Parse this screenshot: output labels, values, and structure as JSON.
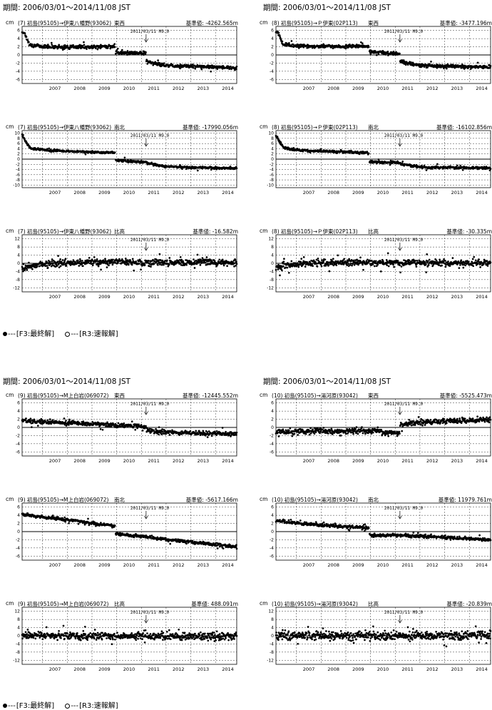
{
  "page": {
    "groups": [
      {
        "period_left": "期間: 2006/03/01～2014/11/08 JST",
        "period_right": "期間: 2006/03/01～2014/11/08 JST"
      },
      {
        "period_left": "期間: 2006/03/01～2014/11/08 JST",
        "period_right": "期間: 2006/03/01～2014/11/08 JST"
      }
    ],
    "legend": {
      "final_label": "[F3:最終解]",
      "quick_label": "[R3:速報解]",
      "dash": "---"
    },
    "colors": {
      "data": "#000000",
      "grid": "#000000"
    }
  },
  "chart_data": [
    {
      "type": "scatter",
      "unit": "cm",
      "line_label": "(7) 初島(95105)→伊東八幡野(93062)",
      "component": "東西",
      "reference": "基準値: -4262.565m",
      "annotation": "2011/03/11 M9.0",
      "annotation_x": 2011.19,
      "ylim": [
        -7,
        7
      ],
      "yticks": [
        6,
        4,
        2,
        0,
        -2,
        -4,
        -6
      ],
      "xlim": [
        2006.17,
        2014.86
      ],
      "xticks": [
        2007,
        2008,
        2009,
        2010,
        2011,
        2012,
        2013,
        2014
      ],
      "grid": true,
      "segments": [
        {
          "x": [
            2006.17,
            2006.28,
            2006.45,
            2006.7,
            2007.0,
            2007.5,
            2008.0,
            2008.5,
            2009.0,
            2009.5,
            2009.93
          ],
          "y": [
            5.7,
            5.3,
            2.6,
            2.3,
            2.1,
            2.0,
            1.9,
            2.0,
            1.9,
            2.1,
            2.0
          ]
        },
        {
          "x": [
            2009.96,
            2010.3,
            2010.7,
            2011.0,
            2011.18
          ],
          "y": [
            0.7,
            0.6,
            0.5,
            0.5,
            0.5
          ]
        },
        {
          "x": [
            2011.2,
            2011.6,
            2012.0,
            2012.5,
            2013.0,
            2013.5,
            2014.0,
            2014.5,
            2014.86
          ],
          "y": [
            -1.5,
            -2.2,
            -2.5,
            -2.7,
            -2.8,
            -2.9,
            -3.0,
            -3.1,
            -3.2
          ]
        }
      ],
      "scatter": 0.35
    },
    {
      "type": "scatter",
      "unit": "cm",
      "line_label": "(8) 初島(95105)→Ｐ伊東(02P113)",
      "component": "東西",
      "reference": "基準値: -3477.196m",
      "annotation": "2011/03/11 M9.0",
      "annotation_x": 2011.19,
      "ylim": [
        -7,
        7
      ],
      "yticks": [
        6,
        4,
        2,
        0,
        -2,
        -4,
        -6
      ],
      "xlim": [
        2006.17,
        2014.86
      ],
      "xticks": [
        2007,
        2008,
        2009,
        2010,
        2011,
        2012,
        2013,
        2014
      ],
      "grid": true,
      "segments": [
        {
          "x": [
            2006.17,
            2006.28,
            2006.45,
            2006.7,
            2007.0,
            2007.5,
            2008.0,
            2008.5,
            2009.0,
            2009.5,
            2009.93
          ],
          "y": [
            5.7,
            5.2,
            2.7,
            2.4,
            2.2,
            2.1,
            2.1,
            2.1,
            2.0,
            2.2,
            2.1
          ]
        },
        {
          "x": [
            2009.96,
            2010.4,
            2010.8,
            2011.18
          ],
          "y": [
            0.7,
            0.5,
            0.4,
            0.3
          ]
        },
        {
          "x": [
            2011.2,
            2011.6,
            2012.0,
            2012.5,
            2013.0,
            2013.5,
            2014.0,
            2014.5,
            2014.86
          ],
          "y": [
            -1.5,
            -2.2,
            -2.5,
            -2.6,
            -2.8,
            -2.8,
            -2.9,
            -3.0,
            -3.0
          ]
        }
      ],
      "scatter": 0.35
    },
    {
      "type": "scatter",
      "unit": "cm",
      "line_label": "(7) 初島(95105)→伊東八幡野(93062)",
      "component": "南北",
      "reference": "基準値: -17990.056m",
      "annotation": "2011/03/11 M9.0",
      "annotation_x": 2011.19,
      "ylim": [
        -11,
        11
      ],
      "yticks": [
        10,
        8,
        6,
        4,
        2,
        0,
        -2,
        -4,
        -6,
        -8,
        -10
      ],
      "xlim": [
        2006.17,
        2014.86
      ],
      "xticks": [
        2007,
        2008,
        2009,
        2010,
        2011,
        2012,
        2013,
        2014
      ],
      "grid": true,
      "segments": [
        {
          "x": [
            2006.17,
            2006.3,
            2006.5,
            2006.8,
            2007.2,
            2007.8,
            2008.5,
            2009.2,
            2009.93
          ],
          "y": [
            9.3,
            7.0,
            4.3,
            3.8,
            3.4,
            3.1,
            2.9,
            2.7,
            2.5
          ]
        },
        {
          "x": [
            2009.96,
            2010.5,
            2011.18
          ],
          "y": [
            -0.5,
            -0.8,
            -1.1
          ]
        },
        {
          "x": [
            2011.2,
            2011.6,
            2012.0,
            2012.5,
            2013.0,
            2013.5,
            2014.0,
            2014.5,
            2014.86
          ],
          "y": [
            -1.4,
            -2.3,
            -2.8,
            -3.0,
            -3.2,
            -3.3,
            -3.4,
            -3.5,
            -3.5
          ]
        }
      ],
      "scatter": 0.35
    },
    {
      "type": "scatter",
      "unit": "cm",
      "line_label": "(8) 初島(95105)→Ｐ伊東(02P113)",
      "component": "南北",
      "reference": "基準値: -16102.856m",
      "annotation": "2011/03/11 M9.0",
      "annotation_x": 2011.19,
      "ylim": [
        -11,
        11
      ],
      "yticks": [
        10,
        8,
        6,
        4,
        2,
        0,
        -2,
        -4,
        -6,
        -8,
        -10
      ],
      "xlim": [
        2006.17,
        2014.86
      ],
      "xticks": [
        2007,
        2008,
        2009,
        2010,
        2011,
        2012,
        2013,
        2014
      ],
      "grid": true,
      "segments": [
        {
          "x": [
            2006.17,
            2006.3,
            2006.5,
            2006.8,
            2007.2,
            2007.8,
            2008.5,
            2009.2,
            2009.93
          ],
          "y": [
            9.2,
            6.8,
            4.4,
            3.8,
            3.4,
            3.1,
            2.9,
            2.7,
            2.4
          ]
        },
        {
          "x": [
            2009.96,
            2010.5,
            2011.18
          ],
          "y": [
            -1.0,
            -1.2,
            -1.4
          ]
        },
        {
          "x": [
            2011.2,
            2011.6,
            2012.0,
            2012.5,
            2013.0,
            2013.5,
            2014.0,
            2014.5,
            2014.86
          ],
          "y": [
            -1.8,
            -2.4,
            -3.0,
            -3.2,
            -3.2,
            -3.3,
            -3.4,
            -3.4,
            -3.4
          ]
        }
      ],
      "scatter": 0.4
    },
    {
      "type": "scatter",
      "unit": "cm",
      "line_label": "(7) 初島(95105)→伊東八幡野(93062)",
      "component": "比高",
      "reference": "基準値: -16.582m",
      "annotation": "2011/03/11 M9.0",
      "annotation_x": 2011.19,
      "ylim": [
        -14,
        14
      ],
      "yticks": [
        12,
        8,
        4,
        0,
        -4,
        -8,
        -12
      ],
      "xlim": [
        2006.17,
        2014.86
      ],
      "xticks": [
        2007,
        2008,
        2009,
        2010,
        2011,
        2012,
        2013,
        2014
      ],
      "grid": true,
      "segments": [
        {
          "x": [
            2006.17,
            2006.5,
            2007.0,
            2008.0,
            2009.0,
            2010.0,
            2011.0,
            2012.0,
            2013.0,
            2014.0,
            2014.86
          ],
          "y": [
            -2.5,
            -1.5,
            -0.5,
            0.3,
            0.5,
            0.5,
            0.5,
            0.5,
            0.5,
            0.5,
            0.5
          ]
        }
      ],
      "scatter": 1.4
    },
    {
      "type": "scatter",
      "unit": "cm",
      "line_label": "(8) 初島(95105)→Ｐ伊東(02P113)",
      "component": "比高",
      "reference": "基準値: -30.335m",
      "annotation": "2011/03/11 M9.0",
      "annotation_x": 2011.19,
      "ylim": [
        -14,
        14
      ],
      "yticks": [
        12,
        8,
        4,
        0,
        -4,
        -8,
        -12
      ],
      "xlim": [
        2006.17,
        2014.86
      ],
      "xticks": [
        2007,
        2008,
        2009,
        2010,
        2011,
        2012,
        2013,
        2014
      ],
      "grid": true,
      "segments": [
        {
          "x": [
            2006.17,
            2006.5,
            2007.0,
            2008.0,
            2009.0,
            2010.0,
            2011.0,
            2012.0,
            2013.0,
            2014.0,
            2014.86
          ],
          "y": [
            -2.2,
            -1.2,
            -0.3,
            0.3,
            0.4,
            0.4,
            0.4,
            0.3,
            0.2,
            0.2,
            0.2
          ]
        }
      ],
      "scatter": 1.4
    },
    {
      "type": "scatter",
      "unit": "cm",
      "line_label": "(9) 初島(95105)→M上白岩(069072)",
      "component": "東西",
      "reference": "基準値: -12445.552m",
      "annotation": "2011/03/11 M9.0",
      "annotation_x": 2011.19,
      "ylim": [
        -7,
        7
      ],
      "yticks": [
        6,
        4,
        2,
        0,
        -2,
        -4,
        -6
      ],
      "xlim": [
        2006.17,
        2014.86
      ],
      "xticks": [
        2007,
        2008,
        2009,
        2010,
        2011,
        2012,
        2013,
        2014
      ],
      "grid": true,
      "segments": [
        {
          "x": [
            2006.17,
            2007.0,
            2008.0,
            2009.0,
            2010.0,
            2010.9,
            2011.18
          ],
          "y": [
            1.6,
            1.4,
            1.1,
            0.9,
            0.6,
            0.3,
            0.2
          ]
        },
        {
          "x": [
            2011.2,
            2011.6,
            2012.0,
            2012.5,
            2013.0,
            2013.5,
            2014.0,
            2014.5,
            2014.86
          ],
          "y": [
            -0.6,
            -1.0,
            -1.2,
            -1.3,
            -1.4,
            -1.4,
            -1.5,
            -1.5,
            -1.6
          ]
        }
      ],
      "scatter": 0.45
    },
    {
      "type": "scatter",
      "unit": "cm",
      "line_label": "(10) 初島(95105)→湯河原(93042)",
      "component": "東西",
      "reference": "基準値: -5525.473m",
      "annotation": "2011/03/11 M9.0",
      "annotation_x": 2011.19,
      "ylim": [
        -7,
        7
      ],
      "yticks": [
        6,
        4,
        2,
        0,
        -2,
        -4,
        -6
      ],
      "xlim": [
        2006.17,
        2014.86
      ],
      "xticks": [
        2007,
        2008,
        2009,
        2010,
        2011,
        2012,
        2013,
        2014
      ],
      "grid": true,
      "segments": [
        {
          "x": [
            2006.17,
            2007.0,
            2008.0,
            2009.0,
            2010.0,
            2010.6,
            2011.18
          ],
          "y": [
            -1.0,
            -1.0,
            -0.9,
            -0.9,
            -0.8,
            -1.2,
            -1.3
          ]
        },
        {
          "x": [
            2011.2,
            2011.5,
            2012.0,
            2012.5,
            2013.0,
            2013.5,
            2014.0,
            2014.5,
            2014.86
          ],
          "y": [
            0.6,
            1.0,
            1.2,
            1.4,
            1.5,
            1.6,
            1.7,
            1.9,
            2.0
          ]
        }
      ],
      "scatter": 0.55
    },
    {
      "type": "scatter",
      "unit": "cm",
      "line_label": "(9) 初島(95105)→M上白岩(069072)",
      "component": "南北",
      "reference": "基準値: -5617.166m",
      "annotation": "2011/03/11 M9.0",
      "annotation_x": 2011.19,
      "ylim": [
        -7,
        7
      ],
      "yticks": [
        6,
        4,
        2,
        0,
        -2,
        -4,
        -6
      ],
      "xlim": [
        2006.17,
        2014.86
      ],
      "xticks": [
        2007,
        2008,
        2009,
        2010,
        2011,
        2012,
        2013,
        2014
      ],
      "grid": true,
      "segments": [
        {
          "x": [
            2006.17,
            2007.0,
            2008.0,
            2009.0,
            2009.93
          ],
          "y": [
            4.3,
            3.6,
            2.9,
            2.1,
            1.4
          ]
        },
        {
          "x": [
            2009.96,
            2011.0,
            2012.0,
            2013.0,
            2014.0,
            2014.86
          ],
          "y": [
            -0.5,
            -1.2,
            -1.9,
            -2.6,
            -3.2,
            -3.7
          ]
        }
      ],
      "scatter": 0.3
    },
    {
      "type": "scatter",
      "unit": "cm",
      "line_label": "(10) 初島(95105)→湯河原(93042)",
      "component": "南北",
      "reference": "基準値: 11979.761m",
      "annotation": "2011/03/11 M9.0",
      "annotation_x": 2011.19,
      "ylim": [
        -7,
        7
      ],
      "yticks": [
        6,
        4,
        2,
        0,
        -2,
        -4,
        -6
      ],
      "xlim": [
        2006.17,
        2014.86
      ],
      "xticks": [
        2007,
        2008,
        2009,
        2010,
        2011,
        2012,
        2013,
        2014
      ],
      "grid": true,
      "segments": [
        {
          "x": [
            2006.17,
            2007.0,
            2008.0,
            2009.0,
            2009.93
          ],
          "y": [
            2.7,
            2.1,
            1.6,
            1.2,
            0.9
          ]
        },
        {
          "x": [
            2009.96,
            2011.0,
            2012.0,
            2013.0,
            2014.0,
            2014.86
          ],
          "y": [
            -0.9,
            -0.9,
            -1.1,
            -1.4,
            -1.7,
            -2.0
          ]
        }
      ],
      "scatter": 0.3
    },
    {
      "type": "scatter",
      "unit": "cm",
      "line_label": "(9) 初島(95105)→M上白岩(069072)",
      "component": "比高",
      "reference": "基準値: 488.091m",
      "annotation": "2011/03/11 M9.0",
      "annotation_x": 2011.19,
      "ylim": [
        -14,
        14
      ],
      "yticks": [
        12,
        8,
        4,
        0,
        -4,
        -8,
        -12
      ],
      "xlim": [
        2006.17,
        2014.86
      ],
      "xticks": [
        2007,
        2008,
        2009,
        2010,
        2011,
        2012,
        2013,
        2014
      ],
      "grid": true,
      "segments": [
        {
          "x": [
            2006.17,
            2008.0,
            2010.0,
            2012.0,
            2014.86
          ],
          "y": [
            0.3,
            0.1,
            -0.1,
            -0.2,
            -0.3
          ]
        }
      ],
      "scatter": 1.5
    },
    {
      "type": "scatter",
      "unit": "cm",
      "line_label": "(10) 初島(95105)→湯河原(93042)",
      "component": "比高",
      "reference": "基準値: -20.839m",
      "annotation": "2011/03/11 M9.0",
      "annotation_x": 2011.19,
      "ylim": [
        -14,
        14
      ],
      "yticks": [
        12,
        8,
        4,
        0,
        -4,
        -8,
        -12
      ],
      "xlim": [
        2006.17,
        2014.86
      ],
      "xticks": [
        2007,
        2008,
        2009,
        2010,
        2011,
        2012,
        2013,
        2014
      ],
      "grid": true,
      "segments": [
        {
          "x": [
            2006.17,
            2008.0,
            2010.0,
            2012.0,
            2014.86
          ],
          "y": [
            0.2,
            0.0,
            -0.1,
            0.0,
            0.5
          ]
        }
      ],
      "scatter": 1.8
    }
  ]
}
